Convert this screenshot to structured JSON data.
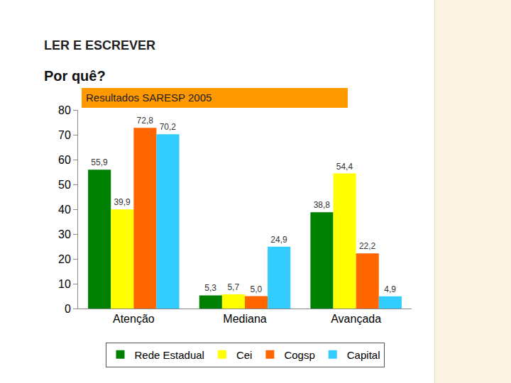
{
  "heading": "LER E ESCREVER",
  "subheading": "Por quê?",
  "chart_data": {
    "type": "bar",
    "title": "Resultados SARESP 2005",
    "categories": [
      "Atenção",
      "Mediana",
      "Avançada"
    ],
    "series": [
      {
        "name": "Rede Estadual",
        "color": "#008000",
        "values": [
          55.9,
          5.3,
          38.8
        ],
        "value_labels": [
          "55,9",
          "5,3",
          "38,8"
        ]
      },
      {
        "name": "Cei",
        "color": "#ffff00",
        "values": [
          39.9,
          5.7,
          54.4
        ],
        "value_labels": [
          "39,9",
          "5,7",
          "54,4"
        ]
      },
      {
        "name": "Cogsp",
        "color": "#ff6600",
        "values": [
          72.8,
          5.0,
          22.2
        ],
        "value_labels": [
          "72,8",
          "5,0",
          "22,2"
        ]
      },
      {
        "name": "Capital",
        "color": "#33ccff",
        "values": [
          70.2,
          24.9,
          4.9
        ],
        "value_labels": [
          "70,2",
          "24,9",
          "4,9"
        ]
      }
    ],
    "ylim": [
      0,
      80
    ],
    "yticks": [
      0,
      10,
      20,
      30,
      40,
      50,
      60,
      70,
      80
    ],
    "grid": false,
    "legend": "bottom",
    "data_labels": true
  }
}
